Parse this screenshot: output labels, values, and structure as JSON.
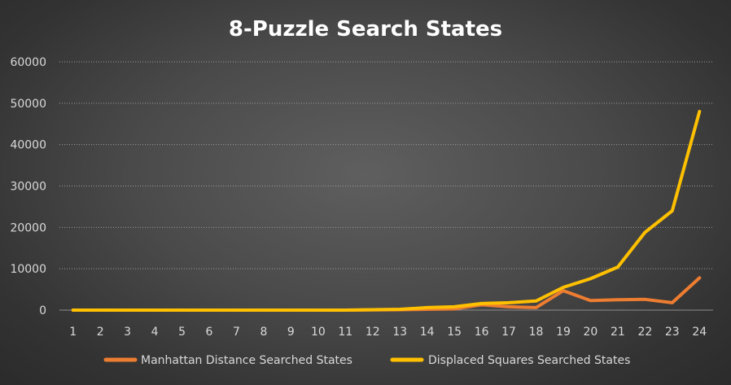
{
  "chart_data": {
    "type": "line",
    "title": "8-Puzzle Search States",
    "xlabel": "",
    "ylabel": "",
    "categories": [
      "1",
      "2",
      "3",
      "4",
      "5",
      "6",
      "7",
      "8",
      "9",
      "10",
      "11",
      "12",
      "13",
      "14",
      "15",
      "16",
      "17",
      "18",
      "19",
      "20",
      "21",
      "22",
      "23",
      "24"
    ],
    "ylim": [
      0,
      60000
    ],
    "yticks": [
      0,
      10000,
      20000,
      30000,
      40000,
      50000,
      60000
    ],
    "ytick_labels": [
      "0",
      "10000",
      "20000",
      "30000",
      "40000",
      "50000",
      "60000"
    ],
    "grid": true,
    "legend_position": "bottom",
    "series": [
      {
        "name": "Manhattan Distance Searched States",
        "color": "#ed7d31",
        "values": [
          0,
          0,
          0,
          0,
          0,
          0,
          0,
          0,
          0,
          0,
          0,
          50,
          100,
          200,
          300,
          1300,
          800,
          600,
          4700,
          2300,
          2500,
          2600,
          1800,
          7800
        ]
      },
      {
        "name": "Displaced Squares Searched States",
        "color": "#ffc000",
        "values": [
          0,
          0,
          0,
          0,
          0,
          0,
          0,
          0,
          0,
          0,
          0,
          100,
          200,
          600,
          800,
          1600,
          1800,
          2200,
          5500,
          7600,
          10400,
          18800,
          24000,
          48000
        ]
      }
    ]
  }
}
